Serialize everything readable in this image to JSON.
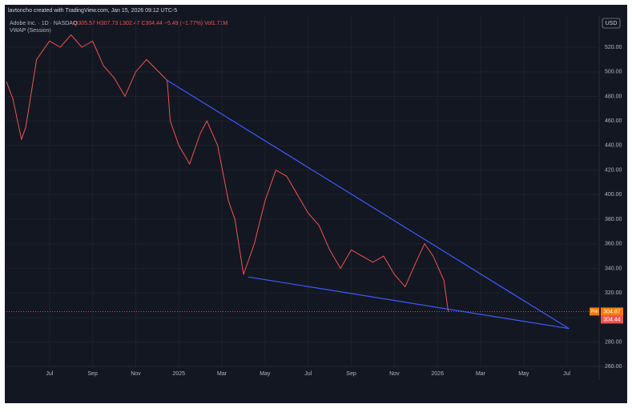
{
  "header": "lavtoncho created with TradingView.com, Jan 15, 2026 09:12 UTC-5",
  "legend": {
    "symbol": "Adobe Inc. · 1D · NASDAQ",
    "ohlc": "O305.57 H307.73 L302.47 C304.44 −5.49 (−1.77%) Vol1.71M",
    "indicator": "VWAP (Session)"
  },
  "currency": "USD",
  "brand": "TradingView",
  "chart_data": {
    "type": "line",
    "x": [
      -2,
      -1.7,
      -1.3,
      -1.1,
      -0.6,
      0,
      0.5,
      1,
      1.5,
      2,
      2.5,
      3,
      3.5,
      4,
      4.5,
      5.46,
      5.6,
      6,
      6.5,
      7,
      7.3,
      7.8,
      8.3,
      8.6,
      9,
      9.5,
      10,
      10.5,
      11,
      11.5,
      12,
      12.5,
      13,
      13.5,
      14,
      14.5,
      15,
      15.5,
      16,
      16.5,
      17,
      17.4,
      17.8,
      18.3,
      18.5
    ],
    "series": [
      {
        "name": "ADBE",
        "color": "#ef5350",
        "values": [
          492,
          478,
          445,
          455,
          510,
          525,
          520,
          530,
          520,
          525,
          505,
          495,
          480,
          500,
          510,
          493,
          460,
          440,
          425,
          450,
          460,
          440,
          395,
          380,
          335,
          360,
          395,
          420,
          415,
          400,
          385,
          375,
          355,
          340,
          355,
          350,
          345,
          350,
          335,
          325,
          345,
          360,
          350,
          330,
          304.87
        ]
      }
    ],
    "trendlines": [
      {
        "color": "#3d5afe",
        "x": [
          5.46,
          24.1
        ],
        "values": [
          493,
          291
        ]
      },
      {
        "color": "#3d5afe",
        "x": [
          9.22,
          24.1
        ],
        "values": [
          333,
          291
        ]
      }
    ],
    "last_price": {
      "tag": "Pre",
      "pre": "304.87",
      "close": "304.44",
      "pre_value": 304.87,
      "close_value": 304.44
    },
    "xlim": [
      -2,
      25.5
    ],
    "xticks": [
      {
        "value": 0,
        "label": "Jul"
      },
      {
        "value": 2,
        "label": "Sep"
      },
      {
        "value": 4,
        "label": "Nov"
      },
      {
        "value": 6,
        "label": "2025"
      },
      {
        "value": 8,
        "label": "Mar"
      },
      {
        "value": 10,
        "label": "May"
      },
      {
        "value": 12,
        "label": "Jul"
      },
      {
        "value": 14,
        "label": "Sep"
      },
      {
        "value": 16,
        "label": "Nov"
      },
      {
        "value": 18,
        "label": "2026"
      },
      {
        "value": 20,
        "label": "Mar"
      },
      {
        "value": 22,
        "label": "May"
      },
      {
        "value": 24,
        "label": "Jul"
      }
    ],
    "ylim": [
      252.4,
      545.4
    ],
    "yticks": [
      {
        "value": 260,
        "label": "260.00"
      },
      {
        "value": 280,
        "label": "280.00"
      },
      {
        "value": 300,
        "label": "300.00"
      },
      {
        "value": 320,
        "label": "320.00"
      },
      {
        "value": 340,
        "label": "340.00"
      },
      {
        "value": 360,
        "label": "360.00"
      },
      {
        "value": 380,
        "label": "380.00"
      },
      {
        "value": 400,
        "label": "400.00"
      },
      {
        "value": 420,
        "label": "420.00"
      },
      {
        "value": 440,
        "label": "440.00"
      },
      {
        "value": 460,
        "label": "460.00"
      },
      {
        "value": 480,
        "label": "480.00"
      },
      {
        "value": 500,
        "label": "500.00"
      },
      {
        "value": 520,
        "label": "520.00"
      }
    ],
    "grid": true
  }
}
